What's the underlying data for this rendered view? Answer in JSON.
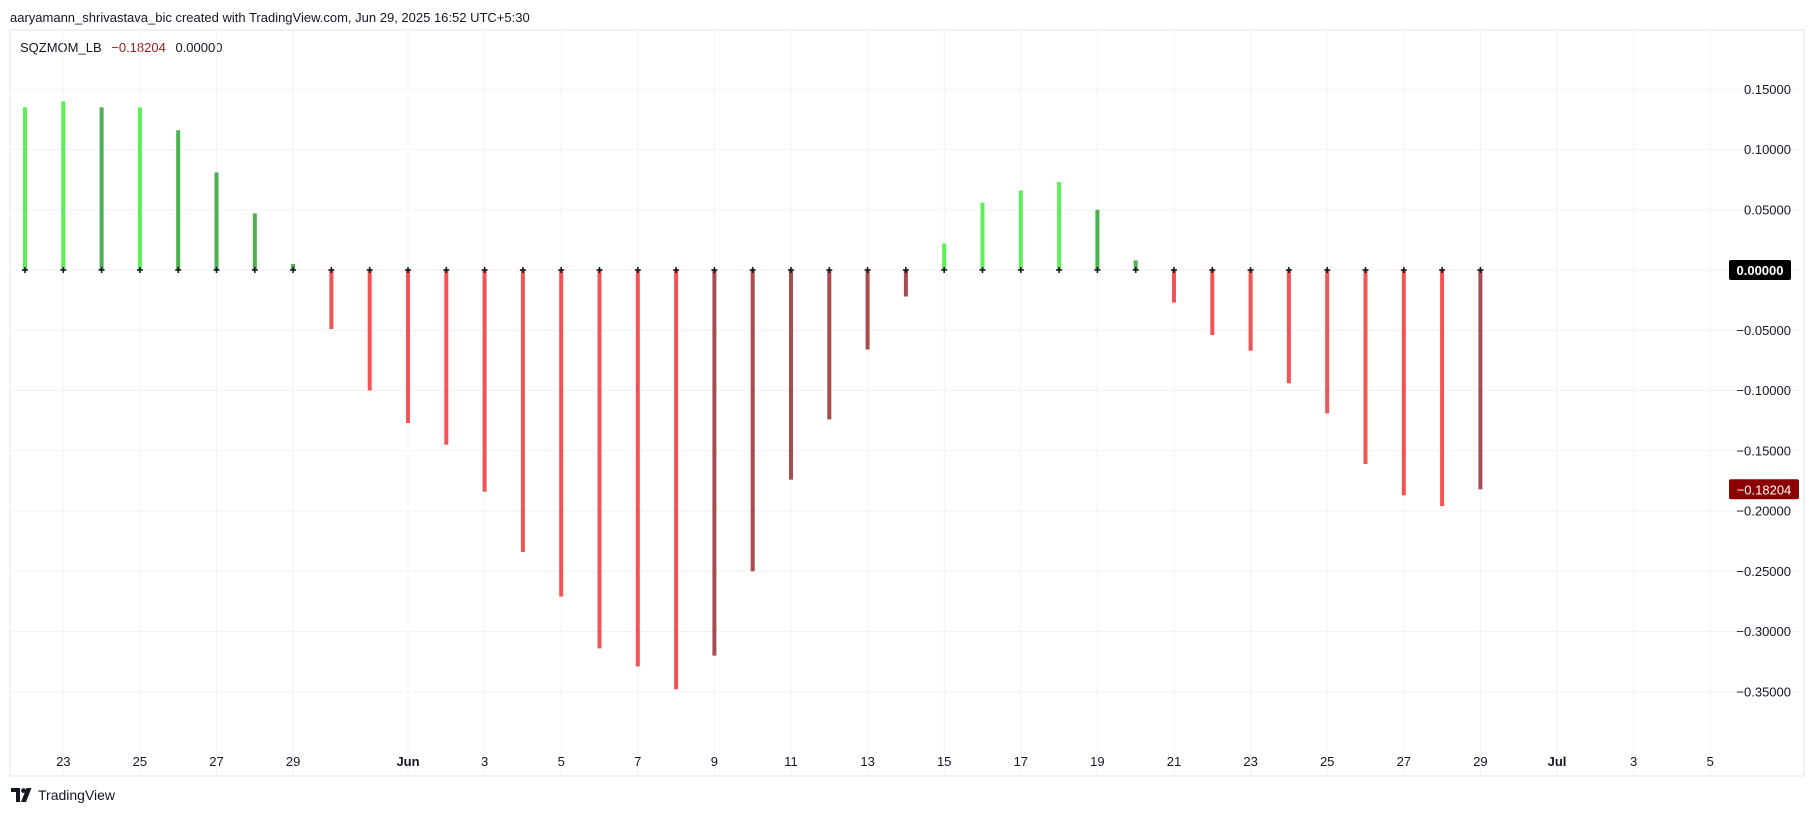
{
  "header": {
    "caption": "aaryamann_shrivastava_bic created with TradingView.com, Jun 29, 2025 16:52 UTC+5:30"
  },
  "legend": {
    "indicator": "SQZMOM_LB",
    "value_current": "−0.18204",
    "value_zero": "0.00000"
  },
  "footer": {
    "brand": "TradingView",
    "brand_icon": "tradingview-logo-icon"
  },
  "colors": {
    "lime": "#5cf055",
    "green": "#4caf50",
    "red": "#f25454",
    "maroon": "#a84d4d",
    "grid": "#f0f3fa",
    "zero_label_bg": "#000000",
    "last_label_bg": "#8b0000"
  },
  "chart_data": {
    "type": "bar",
    "title": "",
    "xlabel": "",
    "ylabel": "",
    "ylim": [
      -0.39,
      0.195
    ],
    "grid": true,
    "y_ticks": [
      "0.15000",
      "0.10000",
      "0.05000",
      "0.00000",
      "−0.05000",
      "−0.10000",
      "−0.15000",
      "−0.20000",
      "−0.25000",
      "−0.30000",
      "−0.35000"
    ],
    "y_tick_values": [
      0.15,
      0.1,
      0.05,
      0.0,
      -0.05,
      -0.1,
      -0.15,
      -0.2,
      -0.25,
      -0.3,
      -0.35
    ],
    "x_ticks": [
      {
        "label": "23",
        "index": 1,
        "bold": false
      },
      {
        "label": "25",
        "index": 3,
        "bold": false
      },
      {
        "label": "27",
        "index": 5,
        "bold": false
      },
      {
        "label": "29",
        "index": 7,
        "bold": false
      },
      {
        "label": "Jun",
        "index": 10,
        "bold": true
      },
      {
        "label": "3",
        "index": 12,
        "bold": false
      },
      {
        "label": "5",
        "index": 14,
        "bold": false
      },
      {
        "label": "7",
        "index": 16,
        "bold": false
      },
      {
        "label": "9",
        "index": 18,
        "bold": false
      },
      {
        "label": "11",
        "index": 20,
        "bold": false
      },
      {
        "label": "13",
        "index": 22,
        "bold": false
      },
      {
        "label": "15",
        "index": 24,
        "bold": false
      },
      {
        "label": "17",
        "index": 26,
        "bold": false
      },
      {
        "label": "19",
        "index": 28,
        "bold": false
      },
      {
        "label": "21",
        "index": 30,
        "bold": false
      },
      {
        "label": "23",
        "index": 32,
        "bold": false
      },
      {
        "label": "25",
        "index": 34,
        "bold": false
      },
      {
        "label": "27",
        "index": 36,
        "bold": false
      },
      {
        "label": "29",
        "index": 38,
        "bold": false
      },
      {
        "label": "Jul",
        "index": 40,
        "bold": true
      },
      {
        "label": "3",
        "index": 42,
        "bold": false
      },
      {
        "label": "5",
        "index": 44,
        "bold": false
      }
    ],
    "series": [
      {
        "values": [
          0.135,
          0.14,
          0.135,
          0.135,
          0.116,
          0.081,
          0.047,
          0.005,
          -0.049,
          -0.1,
          -0.127,
          -0.145,
          -0.184,
          -0.234,
          -0.271,
          -0.314,
          -0.329,
          -0.348,
          -0.32,
          -0.25,
          -0.174,
          -0.124,
          -0.066,
          -0.022,
          0.022,
          0.056,
          0.066,
          0.073,
          0.05,
          0.008,
          -0.027,
          -0.054,
          -0.067,
          -0.094,
          -0.119,
          -0.161,
          -0.187,
          -0.196,
          -0.182
        ],
        "colors": [
          "lime",
          "lime",
          "green",
          "lime",
          "green",
          "green",
          "green",
          "green",
          "red",
          "red",
          "red",
          "red",
          "red",
          "red",
          "red",
          "red",
          "red",
          "red",
          "maroon",
          "maroon",
          "maroon",
          "maroon",
          "maroon",
          "maroon",
          "lime",
          "lime",
          "lime",
          "lime",
          "green",
          "green",
          "red",
          "red",
          "red",
          "red",
          "red",
          "red",
          "red",
          "red",
          "maroon"
        ]
      }
    ],
    "last_value_label": "−0.18204",
    "zero_value_label": "0.00000"
  }
}
